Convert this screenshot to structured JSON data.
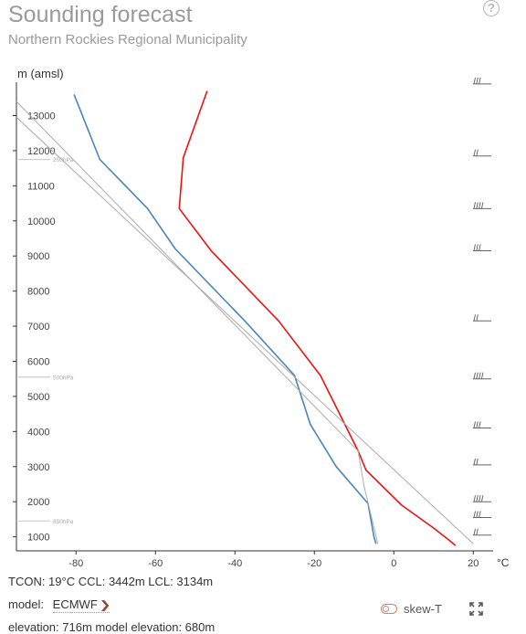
{
  "header": {
    "title": "Sounding forecast",
    "subtitle": "Northern Rockies Regional Municipality",
    "help_icon": "?"
  },
  "chart_data": {
    "type": "line",
    "ylabel": "m (amsl)",
    "xunit": "°C",
    "xlim": [
      -95,
      25
    ],
    "ylim": [
      600,
      13950
    ],
    "x_ticks": [
      -80,
      -60,
      -40,
      -20,
      0,
      20
    ],
    "y_ticks": [
      1000,
      2000,
      3000,
      4000,
      5000,
      6000,
      7000,
      8000,
      9000,
      10000,
      11000,
      12000,
      13000
    ],
    "pressure_levels": [
      {
        "label": "850hPa",
        "y": 1450
      },
      {
        "label": "500hPa",
        "y": 5550
      },
      {
        "label": "200hPa",
        "y": 11750
      }
    ],
    "series": [
      {
        "color": "#ee1111",
        "points": [
          [
            15.5,
            750
          ],
          [
            14,
            900
          ],
          [
            10,
            1250
          ],
          [
            2,
            1900
          ],
          [
            -7,
            2900
          ],
          [
            -9,
            3450
          ],
          [
            -18.5,
            5600
          ],
          [
            -29,
            7150
          ],
          [
            -46,
            9150
          ],
          [
            -54,
            10350
          ],
          [
            -53,
            11800
          ],
          [
            -47,
            13700
          ]
        ]
      },
      {
        "color": "#4a85b8",
        "points": [
          [
            -4.5,
            800
          ],
          [
            -5,
            1000
          ],
          [
            -6.5,
            1950
          ],
          [
            -14.5,
            3000
          ],
          [
            -21,
            4200
          ],
          [
            -25,
            5600
          ],
          [
            -37.5,
            7150
          ],
          [
            -55,
            9200
          ],
          [
            -62,
            10350
          ],
          [
            -74,
            11750
          ],
          [
            -80.5,
            13600
          ]
        ]
      },
      {
        "color": "#aaaaaa",
        "points": [
          [
            -4,
            800
          ],
          [
            -7.5,
            2450
          ],
          [
            -9,
            3450
          ],
          [
            -95,
            13400
          ]
        ]
      },
      {
        "color": "#aaaaaa",
        "points": [
          [
            20,
            800
          ],
          [
            -95,
            12950
          ]
        ]
      }
    ],
    "wind_barb_heights": [
      1050,
      1550,
      2000,
      3050,
      4100,
      5500,
      7150,
      9150,
      10350,
      11850,
      13900
    ]
  },
  "info": {
    "indices": "TCON: 19°C CCL: 3442m LCL: 3134m",
    "model_label": "model:",
    "model_value": "ECMWF",
    "elevation": "elevation: 716m model elevation: 680m"
  },
  "controls": {
    "skew_label": "skew-T",
    "accent_color": "#c9866e"
  }
}
